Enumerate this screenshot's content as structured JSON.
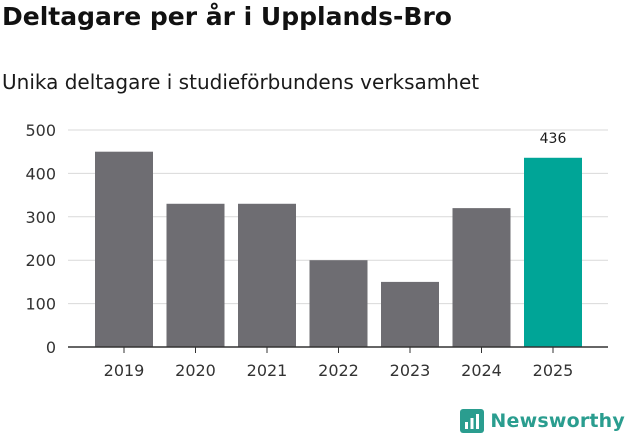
{
  "header": {
    "title": "Deltagare per år i Upplands-Bro",
    "subtitle": "Unika deltagare i studieförbundens verksamhet"
  },
  "brand": {
    "name": "Newsworthy",
    "logo_icon": "newsworthy-logo-icon",
    "color": "#2a9d8f"
  },
  "chart_data": {
    "type": "bar",
    "title": "Deltagare per år i Upplands-Bro",
    "subtitle": "Unika deltagare i studieförbundens verksamhet",
    "categories": [
      "2019",
      "2020",
      "2021",
      "2022",
      "2023",
      "2024",
      "2025"
    ],
    "values": [
      450,
      330,
      330,
      200,
      150,
      320,
      436
    ],
    "highlight_index": 6,
    "data_labels": [
      {
        "index": 6,
        "text": "436"
      }
    ],
    "xlabel": "",
    "ylabel": "",
    "ylim": [
      0,
      500
    ],
    "yticks": [
      "0",
      "100",
      "200",
      "300",
      "400",
      "500"
    ],
    "grid": true,
    "colors": {
      "bar": "#6e6d72",
      "highlight": "#00a597",
      "grid": "#d9d9d9",
      "axis": "#333333"
    }
  }
}
